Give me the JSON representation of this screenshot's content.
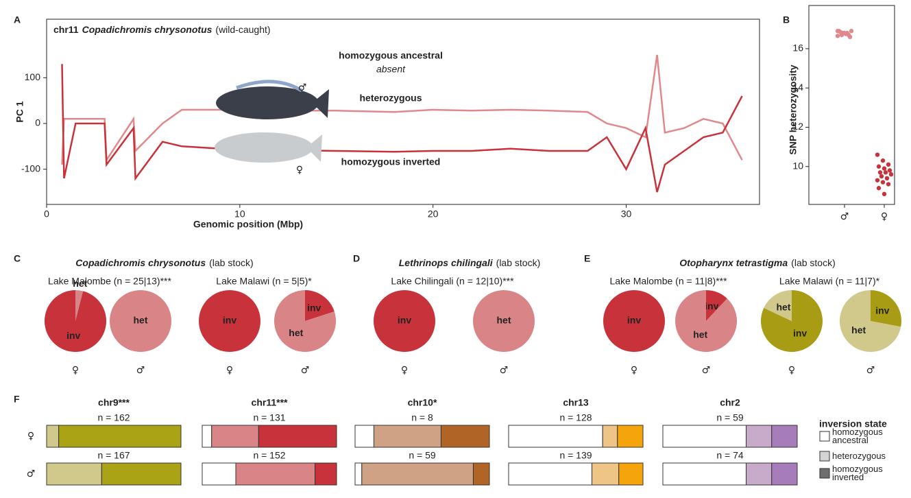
{
  "chart_data": [
    {
      "type": "line",
      "panel": "A",
      "title_parts": [
        "chr11",
        "Copadichromis chrysonotus",
        "(wild-caught)"
      ],
      "xlabel": "Genomic position (Mbp)",
      "ylabel": "PC 1",
      "annotations": [
        "homozygous ancestral",
        "absent"
      ],
      "x": [
        0.8,
        0.9,
        1.5,
        3,
        3.1,
        4.5,
        4.6,
        6,
        7,
        9,
        12,
        15,
        18,
        20,
        22,
        24,
        26,
        28,
        29,
        30,
        31,
        31.6,
        32,
        33,
        34,
        35,
        36
      ],
      "series": [
        {
          "name": "heterozygous",
          "symbol": "♂",
          "color": "#e0898c",
          "values": [
            -90,
            10,
            10,
            10,
            -80,
            10,
            -60,
            0,
            30,
            30,
            28,
            28,
            25,
            30,
            28,
            30,
            28,
            25,
            0,
            -10,
            -30,
            150,
            -20,
            -10,
            10,
            0,
            -80
          ]
        },
        {
          "name": "homozygous inverted",
          "symbol": "♀",
          "color": "#c8323a",
          "values": [
            130,
            -120,
            0,
            0,
            -90,
            -10,
            -120,
            -40,
            -50,
            -55,
            -58,
            -60,
            -62,
            -60,
            -60,
            -55,
            -60,
            -60,
            -30,
            -100,
            -10,
            -150,
            -90,
            -60,
            -30,
            -20,
            60
          ]
        }
      ],
      "xlim": [
        0,
        36.9
      ],
      "xticks": [
        0,
        10,
        20,
        30
      ],
      "ylim": [
        -177,
        228
      ],
      "yticks": [
        -100,
        0,
        100
      ]
    },
    {
      "type": "strip",
      "panel": "B",
      "ylabel": "SNP heterozygosity",
      "categories": [
        "♂",
        "♀"
      ],
      "colors": [
        "#e0898c",
        "#c8323a"
      ],
      "values": [
        [
          16.9,
          16.8,
          16.7,
          16.9,
          16.8,
          16.6,
          16.85,
          16.75,
          16.9,
          16.7,
          16.8,
          16.65
        ],
        [
          10.6,
          10.3,
          10.1,
          10.0,
          9.9,
          9.8,
          9.7,
          9.7,
          9.6,
          9.5,
          9.4,
          9.3,
          9.2,
          9.1,
          8.9,
          8.6
        ]
      ],
      "ylim": [
        8.07,
        18.2
      ],
      "yticks": [
        10,
        12,
        14,
        16
      ]
    },
    {
      "type": "pie",
      "panel": "C",
      "title": "Copadichromis chrysonotus",
      "title_note": "(lab stock)",
      "groups": [
        {
          "label": "Lake Malombe (n = 25|13)***",
          "pies": [
            {
              "sex": "♀",
              "categories": [
                "het",
                "inv"
              ],
              "values": [
                4,
                96
              ],
              "colors": [
                "#d98486",
                "#c8323a"
              ]
            },
            {
              "sex": "♂",
              "categories": [
                "het"
              ],
              "values": [
                100
              ],
              "colors": [
                "#d98486"
              ]
            }
          ]
        },
        {
          "label": "Lake Malawi (n = 5|5)*",
          "pies": [
            {
              "sex": "♀",
              "categories": [
                "inv"
              ],
              "values": [
                100
              ],
              "colors": [
                "#c8323a"
              ]
            },
            {
              "sex": "♂",
              "categories": [
                "inv",
                "het"
              ],
              "values": [
                20,
                80
              ],
              "colors": [
                "#c8323a",
                "#d98486"
              ]
            }
          ]
        }
      ]
    },
    {
      "type": "pie",
      "panel": "D",
      "title": "Lethrinops chilingali",
      "title_note": "(lab stock)",
      "groups": [
        {
          "label": "Lake Chilingali (n = 12|10)***",
          "pies": [
            {
              "sex": "♀",
              "categories": [
                "inv"
              ],
              "values": [
                100
              ],
              "colors": [
                "#c8323a"
              ]
            },
            {
              "sex": "♂",
              "categories": [
                "het"
              ],
              "values": [
                100
              ],
              "colors": [
                "#d98486"
              ]
            }
          ]
        }
      ]
    },
    {
      "type": "pie",
      "panel": "E",
      "title": "Otopharynx tetrastigma",
      "title_note": "(lab stock)",
      "groups": [
        {
          "label": "Lake Malombe (n = 11|8)***",
          "pies": [
            {
              "sex": "♀",
              "categories": [
                "inv"
              ],
              "values": [
                100
              ],
              "colors": [
                "#c8323a"
              ]
            },
            {
              "sex": "♂",
              "categories": [
                "inv",
                "het"
              ],
              "values": [
                12,
                88
              ],
              "colors": [
                "#c8323a",
                "#d98486"
              ]
            }
          ]
        },
        {
          "label": "Lake Malawi (n = 11|7)*",
          "pies": [
            {
              "sex": "♀",
              "categories": [
                "inv",
                "het"
              ],
              "values": [
                82,
                18
              ],
              "colors": [
                "#a89c14",
                "#d1c88b"
              ]
            },
            {
              "sex": "♂",
              "categories": [
                "inv",
                "het"
              ],
              "values": [
                28,
                72
              ],
              "colors": [
                "#a89c14",
                "#d1c88b"
              ]
            }
          ]
        }
      ]
    },
    {
      "type": "stacked-bar",
      "panel": "F",
      "rows": [
        "♀",
        "♂"
      ],
      "legend_title": "inversion state",
      "states": [
        "homozygous ancestral",
        "heterozygous",
        "homozygous inverted"
      ],
      "state_colors": [
        "#ffffff",
        "#d3d3d3",
        "#6e6e6e"
      ],
      "chromosomes": [
        {
          "name": "chr9***",
          "colors": [
            "#ffffff",
            "#d1c88b",
            "#aba316"
          ],
          "bars": [
            {
              "n_label": "n = 162",
              "values": [
                0,
                9,
                91
              ]
            },
            {
              "n_label": "n = 167",
              "values": [
                0,
                41,
                59
              ]
            }
          ]
        },
        {
          "name": "chr11***",
          "colors": [
            "#ffffff",
            "#d98486",
            "#c8323a"
          ],
          "bars": [
            {
              "n_label": "n = 131",
              "values": [
                7,
                35,
                58
              ]
            },
            {
              "n_label": "n = 152",
              "values": [
                25,
                59,
                16
              ]
            }
          ]
        },
        {
          "name": "chr10*",
          "colors": [
            "#ffffff",
            "#cfa285",
            "#b06425"
          ],
          "bars": [
            {
              "n_label": "n = 8",
              "values": [
                14,
                50,
                36
              ]
            },
            {
              "n_label": "n = 59",
              "values": [
                5,
                83,
                12
              ]
            }
          ]
        },
        {
          "name": "chr13",
          "colors": [
            "#ffffff",
            "#eec487",
            "#f5a40c"
          ],
          "bars": [
            {
              "n_label": "n = 128",
              "values": [
                70,
                11,
                19
              ]
            },
            {
              "n_label": "n = 139",
              "values": [
                62,
                20,
                18
              ]
            }
          ]
        },
        {
          "name": "chr2",
          "colors": [
            "#ffffff",
            "#c8aacb",
            "#a77cbb"
          ],
          "bars": [
            {
              "n_label": "n = 59",
              "values": [
                62,
                19,
                19
              ]
            },
            {
              "n_label": "n = 74",
              "values": [
                62,
                19,
                19
              ]
            }
          ]
        }
      ]
    }
  ]
}
